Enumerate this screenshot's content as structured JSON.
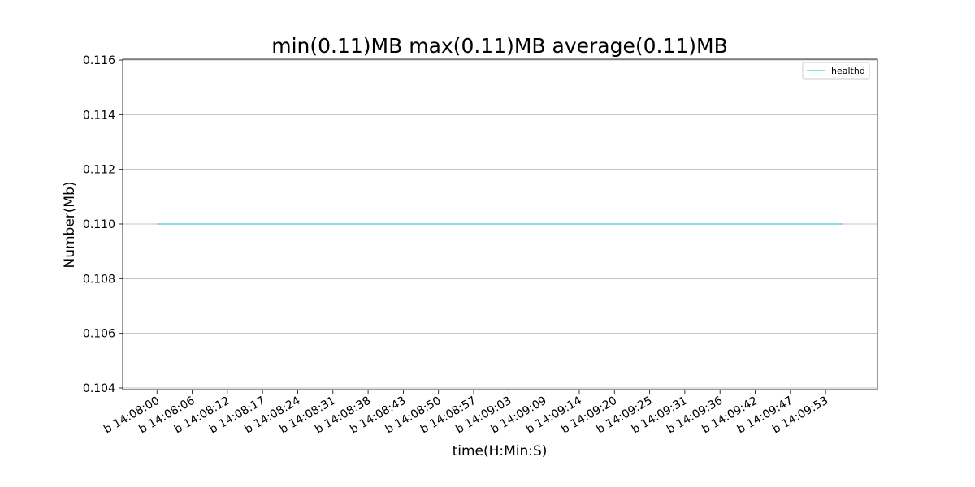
{
  "chart_data": {
    "type": "line",
    "title": "min(0.11)MB max(0.11)MB average(0.11)MB",
    "x_label": "time(H:Min:S)",
    "y_label": "Number(Mb)",
    "categories": [
      "b 14:08:00",
      null,
      "b 14:08:06",
      null,
      "b 14:08:12",
      null,
      "b 14:08:17",
      null,
      "b 14:08:24",
      null,
      "b 14:08:31",
      null,
      "b 14:08:38",
      null,
      "b 14:08:43",
      null,
      "b 14:08:50",
      null,
      "b 14:08:57",
      null,
      "b 14:09:03",
      null,
      "b 14:09:09",
      null,
      "b 14:09:14",
      null,
      "b 14:09:20",
      null,
      "b 14:09:25",
      null,
      "b 14:09:31",
      null,
      "b 14:09:36",
      null,
      "b 14:09:42",
      null,
      "b 14:09:47",
      null,
      "b 14:09:53",
      null
    ],
    "series": [
      {
        "name": "healthd",
        "color": "#17becf",
        "values": [
          0.11,
          0.11,
          0.11,
          0.11,
          0.11,
          0.11,
          0.11,
          0.11,
          0.11,
          0.11,
          0.11,
          0.11,
          0.11,
          0.11,
          0.11,
          0.11,
          0.11,
          0.11,
          0.11,
          0.11,
          0.11,
          0.11,
          0.11,
          0.11,
          0.11,
          0.11,
          0.11,
          0.11,
          0.11,
          0.11,
          0.11,
          0.11,
          0.11,
          0.11,
          0.11,
          0.11,
          0.11,
          0.11,
          0.11,
          0.11
        ]
      }
    ],
    "xlim": [
      -1.95,
      40.95
    ],
    "ylim": [
      0.10394,
      0.11603
    ],
    "yticks": [
      0.104,
      0.106,
      0.108,
      {
        "value": 0.11,
        "label": "0.110"
      },
      0.112,
      0.114,
      0.116
    ],
    "grid": "y",
    "legend": "upper right"
  }
}
